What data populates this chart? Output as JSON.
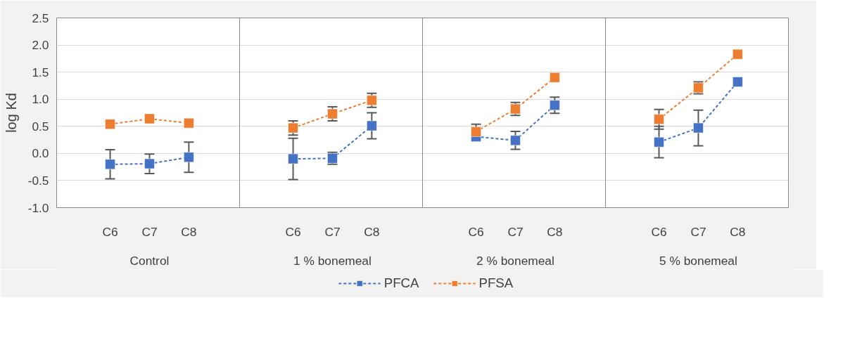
{
  "chart_data": {
    "type": "line",
    "ylabel": "log Kd",
    "categories": [
      "C6",
      "C7",
      "C8",
      "C6",
      "C7",
      "C8",
      "C6",
      "C7",
      "C8",
      "C6",
      "C7",
      "C8"
    ],
    "annotations": [
      "Control",
      "1 % bonemeal",
      "2 % bonemeal",
      "5 % bonemeal"
    ],
    "series": [
      {
        "name": "PFCA",
        "color": "#4472c4",
        "values": [
          -0.2,
          -0.19,
          -0.07,
          -0.1,
          -0.09,
          0.51,
          0.31,
          0.24,
          0.89,
          0.21,
          0.47,
          1.32
        ],
        "errors": [
          0.27,
          0.18,
          0.28,
          0.38,
          0.11,
          0.24,
          null,
          0.165,
          0.15,
          0.29,
          0.33,
          null
        ]
      },
      {
        "name": "PFSA",
        "color": "#ed7d31",
        "values": [
          0.54,
          0.64,
          0.56,
          0.47,
          0.73,
          0.98,
          0.4,
          0.82,
          1.4,
          0.63,
          1.21,
          1.83
        ],
        "errors": [
          null,
          null,
          null,
          0.13,
          0.13,
          0.13,
          0.14,
          0.12,
          null,
          0.18,
          0.11,
          null
        ]
      }
    ],
    "ylim": [
      -1.0,
      2.5
    ],
    "yticks": [
      {
        "value": -1.0,
        "label": "-1.0"
      },
      {
        "value": -0.5,
        "label": "-0.5"
      },
      {
        "value": 0,
        "label": "0.0"
      },
      {
        "value": 0.5,
        "label": "0.5"
      },
      {
        "value": 1.0,
        "label": "1.0"
      },
      {
        "value": 1.5,
        "label": "1.5"
      },
      {
        "value": 2.0,
        "label": "2.0"
      },
      {
        "value": 2.5,
        "label": "2.5"
      }
    ],
    "grid": "y",
    "legend": "bottom",
    "marker": "square",
    "line_style": "dashed"
  }
}
